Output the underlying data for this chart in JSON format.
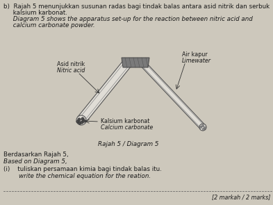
{
  "bg_color": "#cdc8bc",
  "title_line1": "b)  Rajah 5 menunjukkan susunan radas bagi tindak balas antara asid nitrik dan serbuk",
  "title_line2": "     kalsium karbonat.",
  "title_line3": "     Diagram 5 shows the apparatus set-up for the reaction between nitric acid and",
  "title_line4": "     calcium carbonate powder.",
  "label_asid": "Asid nitrik",
  "label_asid_en": "Nitric acid",
  "label_air": "Air kapur",
  "label_air_en": "Limewater",
  "label_kalsium": "Kalsium karbonat",
  "label_kalsium_en": "Calcium carbonate",
  "label_rajah": "Rajah 5 / Diagram 5",
  "label_berdasarkan": "Berdasarkan Rajah 5,",
  "label_based": "Based on Diagram 5,",
  "label_i_ms": "(i)    tuliskan persamaan kimia bagi tindak balas itu.",
  "label_i_en": "        write the chemical equation for the reation.",
  "label_marks": "[2 markah / 2 marks]",
  "text_color": "#1a1a1a"
}
